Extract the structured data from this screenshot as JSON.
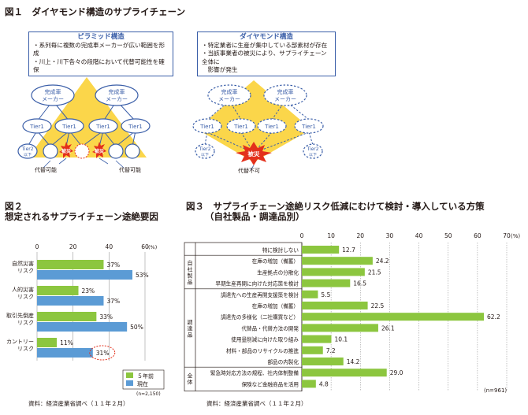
{
  "fig1": {
    "title": "図１　ダイヤモンド構造のサプライチェーン",
    "pyramid": {
      "title": "ピラミッド構造",
      "lines": [
        "・系列毎に複数の完成車メーカーが広い範囲を形成",
        "・川上・川下各々の段階において代替可能性を確保"
      ],
      "oem": "完成車\nメーカー",
      "tier1": "Tier1",
      "tier2": "Tier2\n以下",
      "disaster": "被災",
      "caption_left": "代替可能",
      "caption_right": "代替可能"
    },
    "diamond": {
      "title": "ダイヤモンド構造",
      "lines": [
        "・特定業者に生産が集中している部素材が存在",
        "・当該事業者の被災により、サプライチェーン全体に",
        "　影響が発生"
      ],
      "oem": "完成車\nメーカー",
      "tier1": "Tier1",
      "tier2": "Tier2\n以下",
      "disaster": "被災",
      "caption": "代替不可"
    },
    "colors": {
      "blue": "#3a5ea8",
      "yellow": "#fbd64a",
      "red": "#e3301b"
    }
  },
  "fig2": {
    "title_line1": "図２",
    "title_line2": "想定されるサプライチェーン途絶要因",
    "source": "資料：経済産業省調べ（１１年２月）",
    "note": "(n=2,150)",
    "chart_data": {
      "type": "bar",
      "orientation": "horizontal",
      "categories": [
        "自然災害\nリスク",
        "人的災害\nリスク",
        "取引先倒産\nリスク",
        "カントリー\nリスク"
      ],
      "series": [
        {
          "name": "５年前",
          "values": [
            37,
            23,
            33,
            11
          ],
          "labels": [
            "37%",
            "23%",
            "33%",
            "11%"
          ],
          "color": "#8cc63f"
        },
        {
          "name": "現在",
          "values": [
            53,
            37,
            50,
            31
          ],
          "labels": [
            "53%",
            "37%",
            "50%",
            "31%"
          ],
          "color": "#5b9bd5"
        }
      ],
      "ticks": [
        "0",
        "20",
        "40",
        "60"
      ],
      "unit": "(%)",
      "xlim": [
        0,
        60
      ],
      "legend": "bottom-right",
      "highlight": "31%"
    }
  },
  "fig3": {
    "title_line1": "図３　サプライチェーン途絶リスク低減にむけて検討・導入している方策",
    "title_line2": "（自社製品・調達品別）",
    "source": "資料：経済産業省調べ（１１年２月）",
    "note": "(n=961)",
    "chart_data": {
      "type": "bar",
      "orientation": "horizontal",
      "categories": [
        "特に検討しない",
        "在庫の増加（備蓄）",
        "生産拠点の分散化",
        "早期生産再開に向けた対応策を検討",
        "調達先への生産再開支援策を検討",
        "在庫の増加（備蓄）",
        "調達先の多様化（二社購買など）",
        "代替品・代替方法の開発",
        "使用量削減に向けた取り組み",
        "材料・部品のリサイクルの推進",
        "部品の内製化",
        "緊急時対応方法の規程、社内体制整備",
        "保険など金融商品を活用"
      ],
      "values": [
        12.7,
        24.2,
        21.5,
        16.5,
        5.5,
        22.5,
        62.2,
        26.1,
        10.1,
        7.2,
        14.2,
        29.0,
        4.8
      ],
      "labels": [
        "12.7",
        "24.2",
        "21.5",
        "16.5",
        "5.5",
        "22.5",
        "62.2",
        "26.1",
        "10.1",
        "7.2",
        "14.2",
        "29.0",
        "4.8"
      ],
      "groups": [
        {
          "name": "自社製品",
          "from": 1,
          "to": 3
        },
        {
          "name": "調達品",
          "from": 4,
          "to": 10
        },
        {
          "name": "全体",
          "from": 11,
          "to": 12
        }
      ],
      "ticks": [
        "0",
        "10",
        "20",
        "30",
        "40",
        "50",
        "60",
        "70"
      ],
      "unit": "(%)",
      "xlim": [
        0,
        70
      ],
      "color": "#8cc63f"
    }
  }
}
